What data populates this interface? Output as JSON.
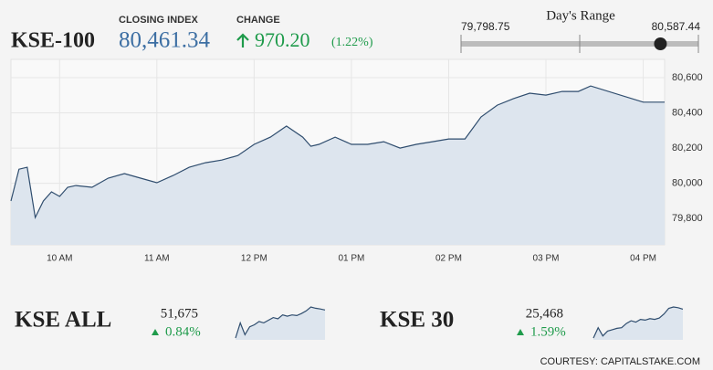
{
  "header": {
    "name": "KSE-100",
    "closing_label": "CLOSING INDEX",
    "closing": "80,461.34",
    "change_label": "CHANGE",
    "change": "970.20",
    "change_pct": "(1.22%)"
  },
  "range": {
    "title": "Day's Range",
    "low": 79798.75,
    "high": 80587.44,
    "value": 80461.34,
    "low_label": "79,798.75",
    "high_label": "80,587.44"
  },
  "chart_data": [
    {
      "type": "line",
      "color": "#2f4d6e",
      "fill": "#dde5ee",
      "grid": true,
      "x": [
        9.5,
        9.583,
        9.667,
        9.75,
        9.833,
        9.917,
        10.0,
        10.083,
        10.167,
        10.333,
        10.5,
        10.667,
        10.833,
        11.0,
        11.167,
        11.333,
        11.5,
        11.667,
        11.833,
        12.0,
        12.167,
        12.333,
        12.5,
        12.583,
        12.667,
        12.833,
        13.0,
        13.167,
        13.333,
        13.5,
        13.667,
        13.833,
        14.0,
        14.167,
        14.333,
        14.5,
        14.667,
        14.833,
        15.0,
        15.167,
        15.333,
        15.46,
        16.0,
        16.22
      ],
      "values": [
        79899,
        80080,
        80091,
        79805,
        79899,
        79951,
        79925,
        79977,
        79987,
        79977,
        80029,
        80055,
        80029,
        80003,
        80044,
        80091,
        80117,
        80132,
        80158,
        80221,
        80262,
        80325,
        80262,
        80210,
        80221,
        80262,
        80221,
        80221,
        80236,
        80200,
        80221,
        80236,
        80252,
        80252,
        80377,
        80444,
        80481,
        80512,
        80501,
        80522,
        80522,
        80553,
        80461,
        80461
      ],
      "xlim": [
        9.5,
        16.22
      ],
      "xticks": [
        {
          "value": 10,
          "label": "10 AM"
        },
        {
          "value": 11,
          "label": "11 AM"
        },
        {
          "value": 12,
          "label": "12 PM"
        },
        {
          "value": 13,
          "label": "01 PM"
        },
        {
          "value": 14,
          "label": "02 PM"
        },
        {
          "value": 15,
          "label": "03 PM"
        },
        {
          "value": 16,
          "label": "04 PM"
        }
      ],
      "ylim": [
        79650,
        80704
      ],
      "yticks": [
        {
          "value": 79800,
          "label": "79,800"
        },
        {
          "value": 80000,
          "label": "80,000"
        },
        {
          "value": 80200,
          "label": "80,200"
        },
        {
          "value": 80400,
          "label": "80,400"
        },
        {
          "value": 80600,
          "label": "80,600"
        }
      ]
    },
    {
      "type": "sparkline",
      "title": "KSE ALL",
      "value_label": "51,675",
      "change": "0.84%",
      "color": "#2f4d6e",
      "fill": "#dde5ee",
      "values": [
        51250,
        51480,
        51300,
        51420,
        51450,
        51500,
        51480,
        51520,
        51560,
        51540,
        51600,
        51580,
        51600,
        51590,
        51620,
        51660,
        51720,
        51700,
        51690,
        51675
      ]
    },
    {
      "type": "sparkline",
      "title": "KSE 30",
      "value_label": "25,468",
      "change": "1.59%",
      "color": "#2f4d6e",
      "fill": "#dde5ee",
      "values": [
        25050,
        25200,
        25080,
        25150,
        25170,
        25190,
        25200,
        25260,
        25300,
        25280,
        25320,
        25310,
        25330,
        25320,
        25340,
        25400,
        25480,
        25500,
        25490,
        25468
      ]
    }
  ],
  "footer": "COURTESY: CAPITALSTAKE.COM"
}
